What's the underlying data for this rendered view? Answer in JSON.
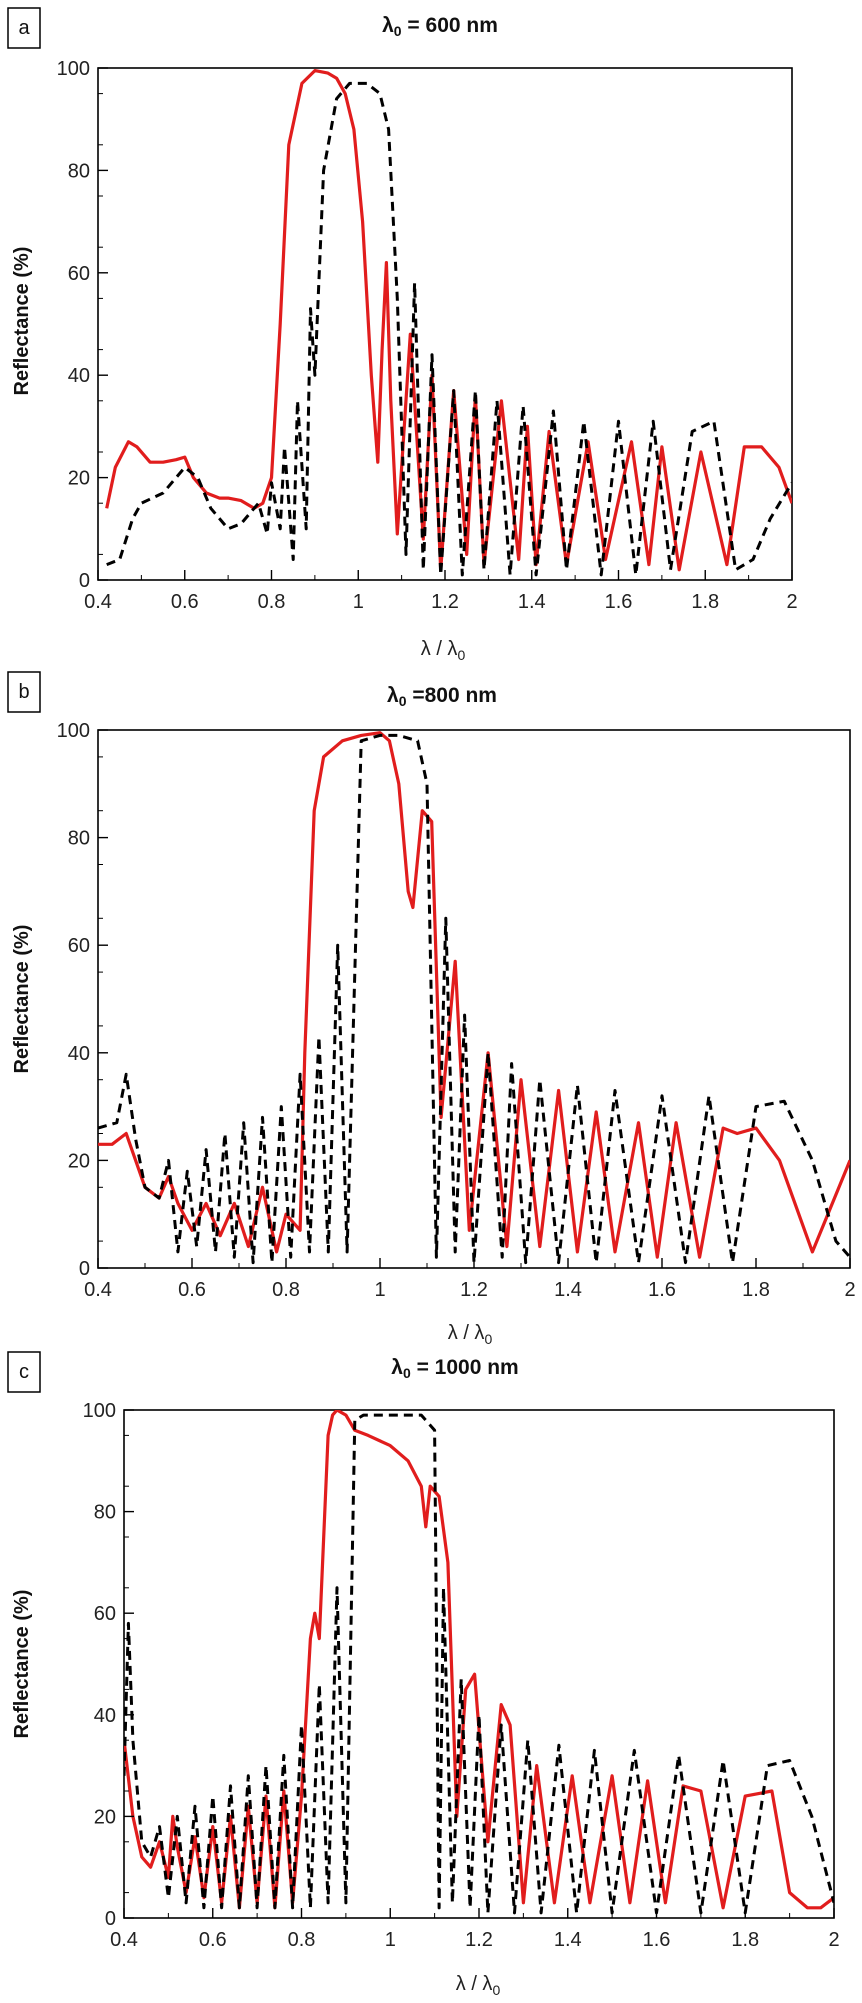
{
  "figure": {
    "colors": {
      "simulated": "#e11d1d",
      "reference": "#000000",
      "axis": "#000000"
    }
  },
  "chart_data": [
    {
      "type": "line",
      "panel": "a",
      "title_prefix": "λ",
      "title_sub": "0",
      "title_suffix": " = 600 nm",
      "xlabel": "λ / λ",
      "xlabel_sub": "0",
      "ylabel": "Reflectance (%)",
      "xlim": [
        0.4,
        2.0
      ],
      "ylim": [
        0,
        100
      ],
      "xticks": [
        0.4,
        0.6,
        0.8,
        1,
        1.2,
        1.4,
        1.6,
        1.8,
        2
      ],
      "xtick_labels": [
        "0.4",
        "0.6",
        "0.8",
        "1",
        "1.2",
        "1.4",
        "1.6",
        "1.8",
        "2"
      ],
      "yticks": [
        0,
        20,
        40,
        60,
        80,
        100
      ],
      "ytick_labels": [
        "0",
        "20",
        "40",
        "60",
        "80",
        "100"
      ],
      "series": [
        {
          "name": "red (solid)",
          "color": "#e11d1d",
          "style": "solid",
          "x": [
            0.42,
            0.44,
            0.47,
            0.49,
            0.52,
            0.55,
            0.58,
            0.6,
            0.62,
            0.65,
            0.68,
            0.7,
            0.73,
            0.76,
            0.78,
            0.8,
            0.82,
            0.84,
            0.87,
            0.9,
            0.93,
            0.95,
            0.97,
            0.99,
            1.01,
            1.03,
            1.045,
            1.055,
            1.065,
            1.075,
            1.09,
            1.12,
            1.15,
            1.17,
            1.19,
            1.22,
            1.25,
            1.27,
            1.29,
            1.33,
            1.37,
            1.39,
            1.41,
            1.44,
            1.48,
            1.53,
            1.57,
            1.63,
            1.67,
            1.7,
            1.74,
            1.79,
            1.85,
            1.89,
            1.93,
            1.97,
            2.0
          ],
          "y": [
            14,
            22,
            27,
            26,
            23,
            23,
            23.5,
            24,
            20,
            17,
            16,
            16,
            15.5,
            14,
            15,
            20,
            50,
            85,
            97,
            99.5,
            99,
            98,
            95,
            88,
            70,
            40,
            23,
            45,
            62,
            35,
            9,
            48,
            8,
            40,
            2,
            37,
            5,
            36,
            3,
            35,
            4,
            30,
            3,
            29,
            3,
            27,
            4,
            27,
            3,
            26,
            2,
            25,
            3,
            26,
            26,
            22,
            15
          ]
        },
        {
          "name": "black (dashed)",
          "color": "#000000",
          "style": "dashed",
          "x": [
            0.42,
            0.45,
            0.48,
            0.5,
            0.55,
            0.6,
            0.63,
            0.66,
            0.7,
            0.73,
            0.75,
            0.77,
            0.79,
            0.8,
            0.82,
            0.83,
            0.85,
            0.86,
            0.88,
            0.89,
            0.9,
            0.92,
            0.95,
            0.98,
            1.0,
            1.02,
            1.05,
            1.07,
            1.09,
            1.11,
            1.13,
            1.15,
            1.17,
            1.19,
            1.22,
            1.24,
            1.27,
            1.29,
            1.32,
            1.35,
            1.38,
            1.41,
            1.45,
            1.48,
            1.52,
            1.56,
            1.6,
            1.64,
            1.68,
            1.72,
            1.77,
            1.82,
            1.87,
            1.91,
            1.95,
            2.0
          ],
          "y": [
            3,
            4,
            12,
            15,
            17,
            22,
            20,
            14,
            10,
            11,
            13,
            15,
            9,
            19,
            10,
            26,
            4,
            35,
            10,
            53,
            40,
            80,
            94,
            97,
            97,
            97,
            95,
            88,
            55,
            5,
            58,
            2,
            44,
            1,
            37,
            1,
            37,
            2,
            35,
            1,
            34,
            1,
            33,
            2,
            31,
            1,
            31,
            1,
            31,
            2,
            29,
            31,
            2,
            4,
            12,
            19
          ]
        }
      ]
    },
    {
      "type": "line",
      "panel": "b",
      "title_prefix": "λ",
      "title_sub": "0",
      "title_suffix": " =800 nm",
      "xlabel": "λ / λ",
      "xlabel_sub": "0",
      "ylabel": "Reflectance (%)",
      "xlim": [
        0.4,
        2.0
      ],
      "ylim": [
        0,
        100
      ],
      "xticks": [
        0.4,
        0.6,
        0.8,
        1,
        1.2,
        1.4,
        1.6,
        1.8,
        2
      ],
      "xtick_labels": [
        "0.4",
        "0.6",
        "0.8",
        "1",
        "1.2",
        "1.4",
        "1.6",
        "1.8",
        "2"
      ],
      "yticks": [
        0,
        20,
        40,
        60,
        80,
        100
      ],
      "ytick_labels": [
        "0",
        "20",
        "40",
        "60",
        "80",
        "100"
      ],
      "series": [
        {
          "name": "red (solid)",
          "color": "#e11d1d",
          "style": "solid",
          "x": [
            0.4,
            0.43,
            0.46,
            0.48,
            0.5,
            0.53,
            0.55,
            0.57,
            0.6,
            0.63,
            0.66,
            0.69,
            0.72,
            0.75,
            0.78,
            0.8,
            0.83,
            0.84,
            0.86,
            0.88,
            0.92,
            0.96,
            1.0,
            1.02,
            1.04,
            1.06,
            1.07,
            1.09,
            1.11,
            1.13,
            1.16,
            1.19,
            1.23,
            1.27,
            1.3,
            1.34,
            1.38,
            1.42,
            1.46,
            1.5,
            1.55,
            1.59,
            1.63,
            1.68,
            1.73,
            1.76,
            1.8,
            1.85,
            1.92,
            2.0
          ],
          "y": [
            23,
            23,
            25,
            20,
            15,
            13,
            17,
            12,
            7,
            12,
            6,
            12,
            4,
            15,
            3,
            10,
            7,
            40,
            85,
            95,
            98,
            99,
            99.5,
            98,
            90,
            70,
            67,
            85,
            83,
            28,
            57,
            7,
            40,
            4,
            35,
            4,
            33,
            3,
            29,
            3,
            27,
            2,
            27,
            2,
            26,
            25,
            26,
            20,
            3,
            20
          ]
        },
        {
          "name": "black (dashed)",
          "color": "#000000",
          "style": "dashed",
          "x": [
            0.4,
            0.44,
            0.46,
            0.48,
            0.5,
            0.53,
            0.55,
            0.57,
            0.59,
            0.61,
            0.63,
            0.65,
            0.67,
            0.69,
            0.71,
            0.73,
            0.75,
            0.77,
            0.79,
            0.81,
            0.83,
            0.85,
            0.87,
            0.89,
            0.91,
            0.93,
            0.96,
            1.0,
            1.04,
            1.08,
            1.1,
            1.12,
            1.14,
            1.16,
            1.18,
            1.2,
            1.23,
            1.26,
            1.28,
            1.31,
            1.34,
            1.38,
            1.42,
            1.46,
            1.5,
            1.55,
            1.6,
            1.65,
            1.7,
            1.75,
            1.8,
            1.86,
            1.92,
            1.97,
            2.0
          ],
          "y": [
            26,
            27,
            36,
            24,
            15,
            13,
            20,
            3,
            18,
            4,
            22,
            3,
            25,
            2,
            27,
            1,
            28,
            1,
            30,
            2,
            36,
            3,
            43,
            3,
            60,
            3,
            98,
            99,
            99,
            98,
            90,
            2,
            65,
            3,
            47,
            1,
            40,
            2,
            38,
            1,
            35,
            1,
            34,
            1,
            33,
            1,
            32,
            1,
            32,
            1,
            30,
            31,
            20,
            5,
            2
          ]
        }
      ]
    },
    {
      "type": "line",
      "panel": "c",
      "title_prefix": "λ",
      "title_sub": "0",
      "title_suffix": " = 1000 nm",
      "xlabel": "λ / λ",
      "xlabel_sub": "0",
      "ylabel": "Reflectance (%)",
      "xlim": [
        0.4,
        2.0
      ],
      "ylim": [
        0,
        100
      ],
      "xticks": [
        0.4,
        0.6,
        0.8,
        1,
        1.2,
        1.4,
        1.6,
        1.8,
        2
      ],
      "xtick_labels": [
        "0.4",
        "0.6",
        "0.8",
        "1",
        "1.2",
        "1.4",
        "1.6",
        "1.8",
        "2"
      ],
      "yticks": [
        0,
        20,
        40,
        60,
        80,
        100
      ],
      "ytick_labels": [
        "0",
        "20",
        "40",
        "60",
        "80",
        "100"
      ],
      "series": [
        {
          "name": "red (solid)",
          "color": "#e11d1d",
          "style": "solid",
          "x": [
            0.4,
            0.42,
            0.44,
            0.46,
            0.48,
            0.5,
            0.51,
            0.52,
            0.54,
            0.56,
            0.58,
            0.6,
            0.62,
            0.64,
            0.66,
            0.68,
            0.7,
            0.72,
            0.74,
            0.76,
            0.78,
            0.8,
            0.82,
            0.83,
            0.84,
            0.85,
            0.86,
            0.87,
            0.88,
            0.9,
            0.92,
            0.95,
            1.0,
            1.04,
            1.07,
            1.08,
            1.09,
            1.11,
            1.13,
            1.15,
            1.17,
            1.19,
            1.22,
            1.25,
            1.27,
            1.3,
            1.33,
            1.37,
            1.41,
            1.45,
            1.5,
            1.54,
            1.58,
            1.62,
            1.66,
            1.7,
            1.75,
            1.8,
            1.86,
            1.9,
            1.94,
            1.97,
            2.0
          ],
          "y": [
            35,
            20,
            12,
            10,
            15,
            8,
            20,
            14,
            5,
            16,
            4,
            18,
            3,
            20,
            2,
            22,
            3,
            24,
            2,
            25,
            3,
            24,
            55,
            60,
            55,
            75,
            95,
            99,
            100,
            99,
            96,
            95,
            93,
            90,
            85,
            77,
            85,
            83,
            70,
            20,
            45,
            48,
            15,
            42,
            38,
            3,
            30,
            3,
            28,
            3,
            28,
            3,
            27,
            3,
            26,
            25,
            2,
            24,
            25,
            5,
            2,
            2,
            4
          ]
        },
        {
          "name": "black (dashed)",
          "color": "#000000",
          "style": "dashed",
          "x": [
            0.4,
            0.41,
            0.42,
            0.44,
            0.46,
            0.48,
            0.5,
            0.52,
            0.54,
            0.56,
            0.58,
            0.6,
            0.62,
            0.64,
            0.66,
            0.68,
            0.7,
            0.72,
            0.74,
            0.76,
            0.78,
            0.8,
            0.82,
            0.84,
            0.86,
            0.88,
            0.9,
            0.92,
            0.94,
            0.97,
            1.02,
            1.07,
            1.1,
            1.11,
            1.12,
            1.14,
            1.16,
            1.18,
            1.2,
            1.22,
            1.25,
            1.28,
            1.31,
            1.34,
            1.38,
            1.42,
            1.46,
            1.5,
            1.55,
            1.6,
            1.65,
            1.7,
            1.75,
            1.8,
            1.85,
            1.9,
            1.95,
            2.0
          ],
          "y": [
            28,
            58,
            35,
            15,
            12,
            18,
            4,
            20,
            3,
            22,
            2,
            24,
            2,
            26,
            2,
            28,
            2,
            30,
            2,
            32,
            2,
            38,
            2,
            46,
            3,
            65,
            3,
            98,
            99,
            99,
            99,
            99,
            96,
            2,
            65,
            3,
            47,
            2,
            40,
            1,
            38,
            1,
            35,
            1,
            34,
            1,
            33,
            1,
            33,
            1,
            32,
            1,
            31,
            1,
            30,
            31,
            20,
            3
          ]
        }
      ]
    }
  ]
}
